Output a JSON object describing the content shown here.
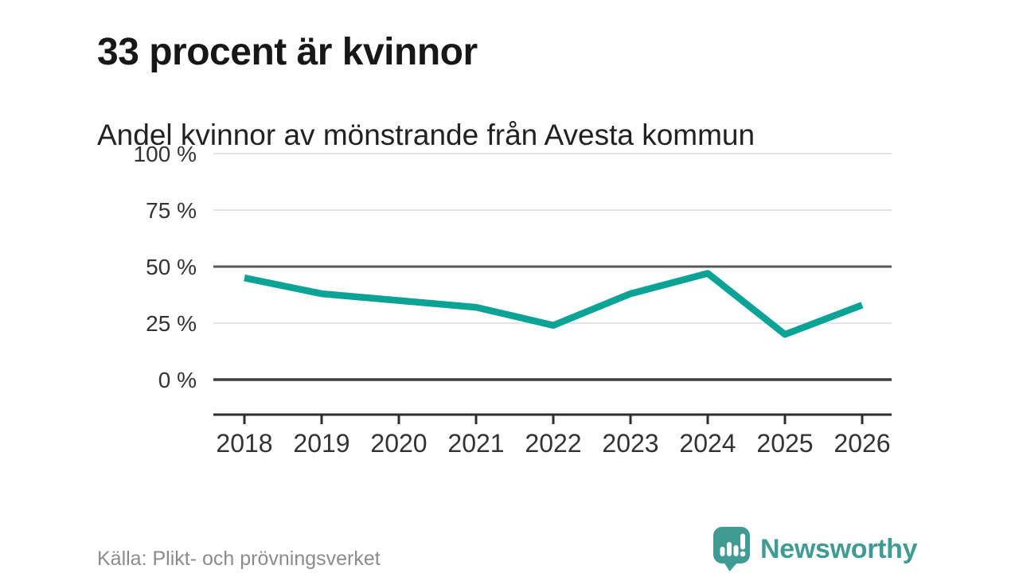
{
  "header": {
    "title": "33 procent är kvinnor",
    "subtitle": "Andel kvinnor av mönstrande från Avesta kommun"
  },
  "chart_data": {
    "type": "line",
    "title": "33 procent är kvinnor",
    "subtitle": "Andel kvinnor av mönstrande från Avesta kommun",
    "x": [
      "2018",
      "2019",
      "2020",
      "2021",
      "2022",
      "2023",
      "2024",
      "2025",
      "2026"
    ],
    "series": [
      {
        "name": "Andel kvinnor av mönstrande",
        "values": [
          45,
          38,
          35,
          32,
          24,
          38,
          47,
          20,
          33
        ],
        "color": "#0aa396"
      }
    ],
    "unit": "%",
    "ylim": [
      0,
      100
    ],
    "yticks": [
      0,
      25,
      50,
      75,
      100
    ],
    "ytick_suffix": " %",
    "emphasized_yticks": [
      50
    ],
    "zero_line": 0,
    "grid": "horizontal",
    "legend": "none"
  },
  "footer": {
    "source": "Källa: Plikt- och prövningsverket",
    "brand_name": "Newsworthy",
    "brand_color": "#3f9b93",
    "logo_icon": "newsworthy-speech-bubble-bar-chart-icon"
  }
}
